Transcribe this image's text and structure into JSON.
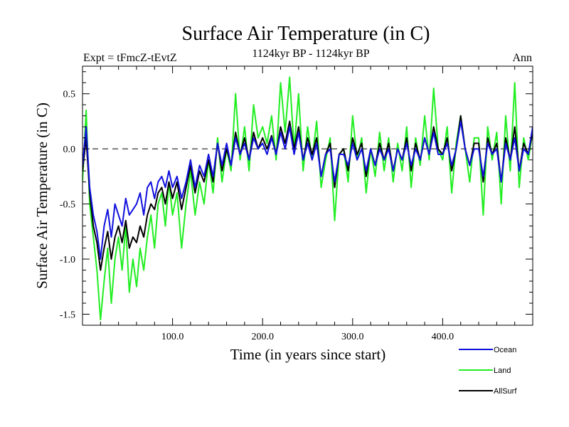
{
  "chart_data": {
    "type": "line",
    "title": "Surface Air Temperature (in C)",
    "subtitle": "1124kyr BP - 1124kyr BP",
    "expt_label": "Expt = tFmcZ-tEvtZ",
    "period_label": "Ann",
    "xlabel": "Time (in years since start)",
    "ylabel": "Surface Air Temperature (in C)",
    "xlim": [
      0,
      500
    ],
    "ylim": [
      -1.6,
      0.75
    ],
    "xticks": [
      100,
      200,
      300,
      400
    ],
    "xtick_labels": [
      "100.0",
      "200.0",
      "300.0",
      "400.0"
    ],
    "yticks": [
      -1.5,
      -1.0,
      -0.5,
      0.0,
      0.5
    ],
    "ytick_labels": [
      "-1.5",
      "-1.0",
      "-0.5",
      "0.0",
      "0.5"
    ],
    "zero_line": true,
    "grid": false,
    "legend_position": "bottom-right",
    "series": [
      {
        "name": "Land",
        "color": "#22ee22",
        "x": [
          0,
          4,
          8,
          12,
          16,
          20,
          24,
          28,
          32,
          36,
          40,
          44,
          48,
          52,
          56,
          60,
          64,
          68,
          72,
          76,
          80,
          84,
          88,
          92,
          96,
          100,
          105,
          110,
          115,
          120,
          125,
          130,
          135,
          140,
          145,
          150,
          155,
          160,
          165,
          170,
          175,
          180,
          185,
          190,
          195,
          200,
          205,
          210,
          215,
          220,
          225,
          230,
          235,
          240,
          245,
          250,
          255,
          260,
          265,
          270,
          275,
          280,
          285,
          290,
          295,
          300,
          305,
          310,
          315,
          320,
          325,
          330,
          335,
          340,
          345,
          350,
          355,
          360,
          365,
          370,
          375,
          380,
          385,
          390,
          395,
          400,
          405,
          410,
          415,
          420,
          425,
          430,
          435,
          440,
          445,
          450,
          455,
          460,
          465,
          470,
          475,
          480,
          485,
          490,
          495,
          500
        ],
        "values": [
          -0.3,
          0.35,
          -0.5,
          -0.8,
          -1.1,
          -1.55,
          -1.2,
          -0.9,
          -1.4,
          -1.0,
          -0.8,
          -1.1,
          -0.7,
          -1.3,
          -1.0,
          -1.25,
          -0.9,
          -1.1,
          -0.8,
          -0.6,
          -0.9,
          -0.5,
          -0.4,
          -0.7,
          -0.3,
          -0.6,
          -0.4,
          -0.9,
          -0.5,
          -0.2,
          -0.6,
          -0.3,
          -0.5,
          -0.1,
          -0.4,
          0.1,
          -0.3,
          0.0,
          -0.2,
          0.5,
          -0.1,
          0.2,
          -0.2,
          0.4,
          0.1,
          0.2,
          0.05,
          0.3,
          -0.1,
          0.6,
          0.15,
          0.65,
          0.0,
          0.5,
          -0.2,
          0.2,
          -0.1,
          0.25,
          -0.35,
          -0.1,
          0.1,
          -0.65,
          -0.05,
          0.0,
          -0.3,
          0.3,
          -0.1,
          0.1,
          -0.4,
          0.0,
          -0.25,
          0.15,
          -0.2,
          0.1,
          -0.3,
          0.05,
          -0.2,
          0.2,
          -0.35,
          0.1,
          -0.15,
          0.3,
          -0.1,
          0.55,
          0.0,
          -0.1,
          0.2,
          -0.4,
          0.05,
          0.3,
          0.0,
          -0.3,
          0.1,
          0.1,
          -0.6,
          0.2,
          -0.1,
          0.15,
          -0.5,
          0.3,
          -0.2,
          0.6,
          -0.35,
          0.1,
          -0.1,
          0.15
        ]
      },
      {
        "name": "AllSurf",
        "color": "#000000",
        "x": [
          0,
          4,
          8,
          12,
          16,
          20,
          24,
          28,
          32,
          36,
          40,
          44,
          48,
          52,
          56,
          60,
          64,
          68,
          72,
          76,
          80,
          84,
          88,
          92,
          96,
          100,
          105,
          110,
          115,
          120,
          125,
          130,
          135,
          140,
          145,
          150,
          155,
          160,
          165,
          170,
          175,
          180,
          185,
          190,
          195,
          200,
          205,
          210,
          215,
          220,
          225,
          230,
          235,
          240,
          245,
          250,
          255,
          260,
          265,
          270,
          275,
          280,
          285,
          290,
          295,
          300,
          305,
          310,
          315,
          320,
          325,
          330,
          335,
          340,
          345,
          350,
          355,
          360,
          365,
          370,
          375,
          380,
          385,
          390,
          395,
          400,
          405,
          410,
          415,
          420,
          425,
          430,
          435,
          440,
          445,
          450,
          455,
          460,
          465,
          470,
          475,
          480,
          485,
          490,
          495,
          500
        ],
        "values": [
          -0.2,
          0.1,
          -0.4,
          -0.7,
          -0.85,
          -1.1,
          -0.9,
          -0.75,
          -1.0,
          -0.8,
          -0.7,
          -0.85,
          -0.65,
          -0.9,
          -0.8,
          -0.85,
          -0.7,
          -0.8,
          -0.6,
          -0.5,
          -0.55,
          -0.4,
          -0.35,
          -0.5,
          -0.3,
          -0.45,
          -0.3,
          -0.55,
          -0.35,
          -0.15,
          -0.4,
          -0.2,
          -0.3,
          -0.1,
          -0.3,
          0.05,
          -0.2,
          0.0,
          -0.15,
          0.15,
          -0.05,
          0.1,
          -0.1,
          0.15,
          0.0,
          0.1,
          0.0,
          0.12,
          -0.05,
          0.2,
          0.05,
          0.25,
          0.0,
          0.2,
          -0.1,
          0.1,
          -0.05,
          0.1,
          -0.25,
          -0.05,
          0.05,
          -0.35,
          -0.05,
          0.0,
          -0.2,
          0.1,
          -0.05,
          0.05,
          -0.25,
          0.0,
          -0.15,
          0.05,
          -0.1,
          0.05,
          -0.2,
          0.0,
          -0.1,
          0.1,
          -0.2,
          0.05,
          -0.1,
          0.1,
          -0.05,
          0.2,
          0.0,
          -0.05,
          0.1,
          -0.2,
          0.0,
          0.3,
          0.0,
          -0.15,
          0.05,
          0.05,
          -0.3,
          0.1,
          -0.05,
          0.05,
          -0.3,
          0.1,
          -0.1,
          0.2,
          -0.2,
          0.05,
          -0.05,
          0.15
        ]
      },
      {
        "name": "Ocean",
        "color": "#1010dd",
        "x": [
          0,
          4,
          8,
          12,
          16,
          20,
          24,
          28,
          32,
          36,
          40,
          44,
          48,
          52,
          56,
          60,
          64,
          68,
          72,
          76,
          80,
          84,
          88,
          92,
          96,
          100,
          105,
          110,
          115,
          120,
          125,
          130,
          135,
          140,
          145,
          150,
          155,
          160,
          165,
          170,
          175,
          180,
          185,
          190,
          195,
          200,
          205,
          210,
          215,
          220,
          225,
          230,
          235,
          240,
          245,
          250,
          255,
          260,
          265,
          270,
          275,
          280,
          285,
          290,
          295,
          300,
          305,
          310,
          315,
          320,
          325,
          330,
          335,
          340,
          345,
          350,
          355,
          360,
          365,
          370,
          375,
          380,
          385,
          390,
          395,
          400,
          405,
          410,
          415,
          420,
          425,
          430,
          435,
          440,
          445,
          450,
          455,
          460,
          465,
          470,
          475,
          480,
          485,
          490,
          495,
          500
        ],
        "values": [
          -0.15,
          0.2,
          -0.35,
          -0.6,
          -0.75,
          -1.0,
          -0.7,
          -0.55,
          -0.8,
          -0.5,
          -0.6,
          -0.7,
          -0.45,
          -0.6,
          -0.55,
          -0.5,
          -0.4,
          -0.6,
          -0.35,
          -0.3,
          -0.45,
          -0.3,
          -0.25,
          -0.35,
          -0.2,
          -0.35,
          -0.25,
          -0.45,
          -0.3,
          -0.1,
          -0.35,
          -0.15,
          -0.25,
          -0.05,
          -0.25,
          0.05,
          -0.15,
          0.05,
          -0.15,
          0.1,
          -0.05,
          0.05,
          -0.1,
          0.1,
          0.0,
          0.05,
          -0.05,
          0.1,
          -0.05,
          0.15,
          0.0,
          0.2,
          -0.05,
          0.15,
          -0.1,
          0.05,
          -0.1,
          0.05,
          -0.25,
          -0.05,
          0.0,
          -0.3,
          -0.05,
          -0.05,
          -0.15,
          0.05,
          -0.1,
          0.0,
          -0.2,
          0.0,
          -0.15,
          0.0,
          -0.1,
          0.0,
          -0.2,
          0.0,
          -0.1,
          0.05,
          -0.15,
          0.0,
          -0.1,
          0.1,
          -0.05,
          0.15,
          -0.05,
          -0.05,
          0.05,
          -0.15,
          0.0,
          0.25,
          0.0,
          -0.15,
          0.0,
          0.0,
          -0.25,
          0.05,
          -0.05,
          0.0,
          -0.3,
          0.05,
          -0.1,
          0.1,
          -0.2,
          0.0,
          -0.05,
          0.2
        ]
      }
    ],
    "legend": [
      {
        "name": "Ocean",
        "color": "#1010dd"
      },
      {
        "name": "Land",
        "color": "#22ee22"
      },
      {
        "name": "AllSurf",
        "color": "#000000"
      }
    ]
  }
}
